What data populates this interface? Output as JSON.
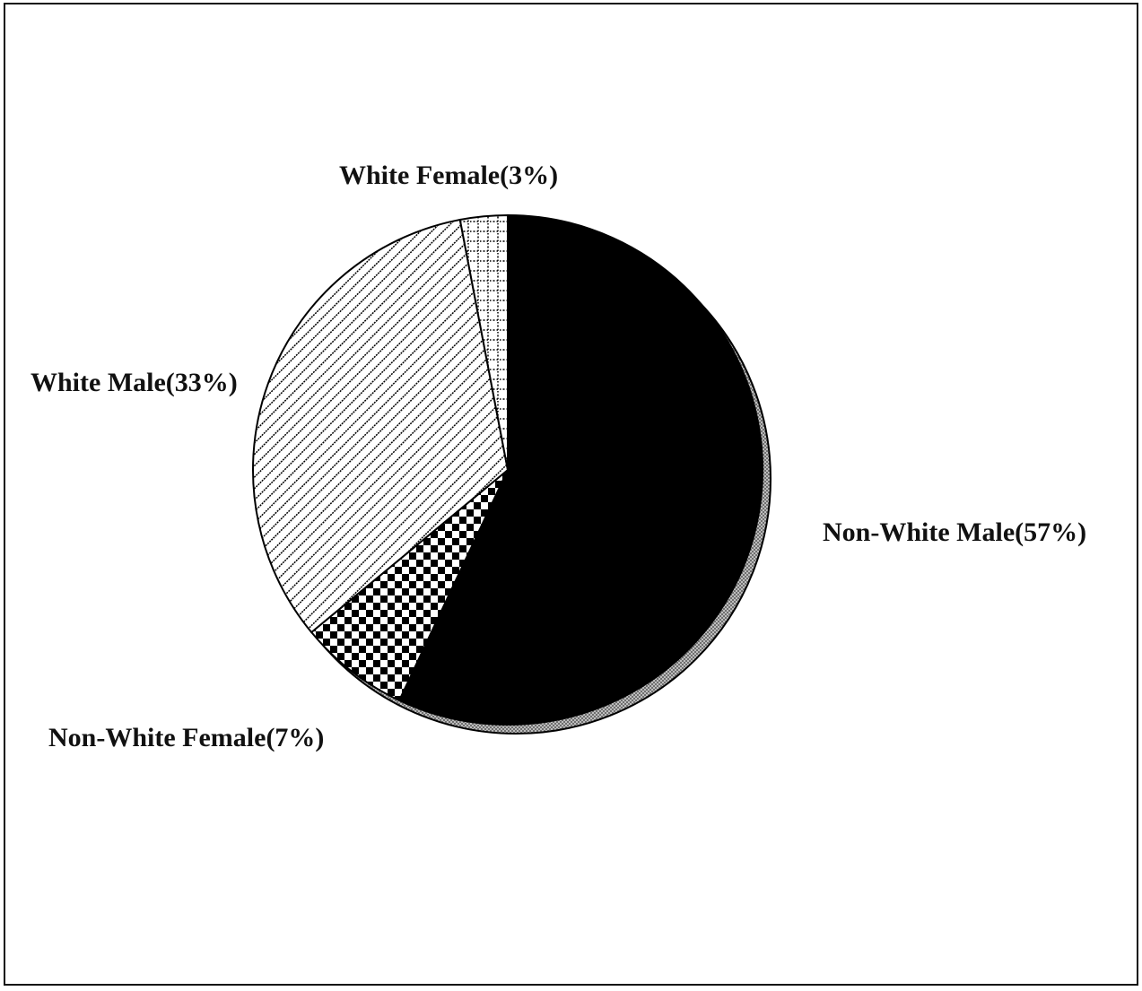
{
  "chart_data": {
    "type": "pie",
    "slices": [
      {
        "label": "Non-White Male(57%)",
        "value": 57,
        "pattern": "solid-black"
      },
      {
        "label": "Non-White Female(7%)",
        "value": 7,
        "pattern": "checkerboard"
      },
      {
        "label": "White Male(33%)",
        "value": 33,
        "pattern": "diagonal-stripes"
      },
      {
        "label": "White Female(3%)",
        "value": 3,
        "pattern": "dotted-grid"
      }
    ],
    "start_angle": "12 o'clock",
    "direction": "clockwise",
    "shadow_color": "#9a9a9a"
  }
}
